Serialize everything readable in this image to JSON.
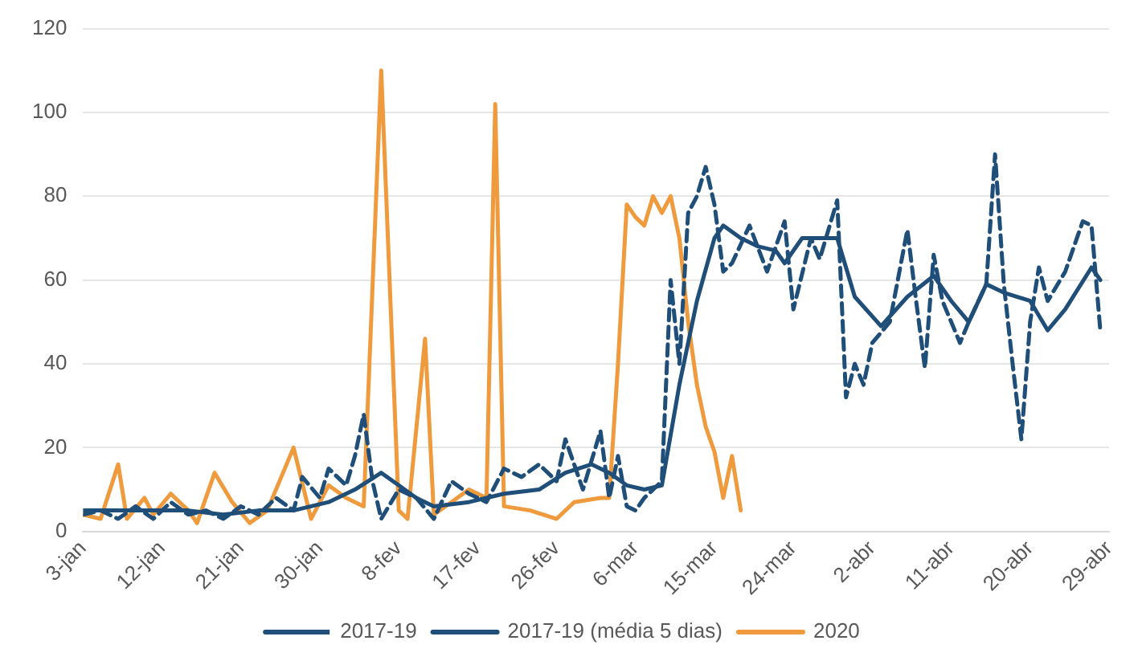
{
  "chart_data": {
    "type": "line",
    "xlim": [
      "--01-03",
      "--04-29"
    ],
    "xticks": [
      {
        "value": "--01-03",
        "label": "3-jan"
      },
      {
        "value": "--01-12",
        "label": "12-jan"
      },
      {
        "value": "--01-21",
        "label": "21-jan"
      },
      {
        "value": "--01-30",
        "label": "30-jan"
      },
      {
        "value": "--02-08",
        "label": "8-fev"
      },
      {
        "value": "--02-17",
        "label": "17-fev"
      },
      {
        "value": "--02-26",
        "label": "26-fev"
      },
      {
        "value": "--03-06",
        "label": "6-mar"
      },
      {
        "value": "--03-15",
        "label": "15-mar"
      },
      {
        "value": "--03-24",
        "label": "24-mar"
      },
      {
        "value": "--04-02",
        "label": "2-abr"
      },
      {
        "value": "--04-11",
        "label": "11-abr"
      },
      {
        "value": "--04-20",
        "label": "20-abr"
      },
      {
        "value": "--04-29",
        "label": "29-abr"
      }
    ],
    "ylim": [
      0,
      120
    ],
    "yticks": [
      0,
      20,
      40,
      60,
      80,
      100,
      120
    ],
    "grid": "y",
    "legend": "bottom",
    "marker": "none",
    "series": [
      {
        "name": "2017-19",
        "color": "#1f4e79",
        "line_style": "dashed",
        "x": [
          "--01-03",
          "--01-05",
          "--01-07",
          "--01-09",
          "--01-11",
          "--01-13",
          "--01-15",
          "--01-17",
          "--01-19",
          "--01-21",
          "--01-23",
          "--01-25",
          "--01-27",
          "--01-28",
          "--01-30",
          "--01-31",
          "--02-02",
          "--02-03",
          "--02-04",
          "--02-05",
          "--02-06",
          "--02-08",
          "--02-10",
          "--02-12",
          "--02-14",
          "--02-16",
          "--02-18",
          "--02-20",
          "--02-22",
          "--02-24",
          "--02-26",
          "--02-27",
          "--02-29",
          "--03-02",
          "--03-03",
          "--03-04",
          "--03-05",
          "--03-06",
          "--03-07",
          "--03-09",
          "--03-10",
          "--03-11",
          "--03-12",
          "--03-13",
          "--03-14",
          "--03-15",
          "--03-16",
          "--03-17",
          "--03-19",
          "--03-21",
          "--03-23",
          "--03-24",
          "--03-26",
          "--03-27",
          "--03-29",
          "--03-30",
          "--03-31",
          "--04-01",
          "--04-02",
          "--04-04",
          "--04-06",
          "--04-07",
          "--04-08",
          "--04-09",
          "--04-10",
          "--04-12",
          "--04-13",
          "--04-15",
          "--04-16",
          "--04-17",
          "--04-18",
          "--04-19",
          "--04-20",
          "--04-21",
          "--04-22",
          "--04-24",
          "--04-26",
          "--04-27",
          "--04-28"
        ],
        "values": [
          4,
          5,
          3,
          6,
          3,
          7,
          4,
          5,
          3,
          6,
          4,
          8,
          5,
          13,
          8,
          15,
          11,
          18,
          28,
          12,
          3,
          10,
          8,
          3,
          12,
          9,
          7,
          15,
          13,
          16,
          12,
          22,
          10,
          24,
          8,
          18,
          6,
          5,
          8,
          12,
          60,
          40,
          76,
          80,
          87,
          78,
          62,
          64,
          73,
          62,
          74,
          53,
          70,
          65,
          79,
          32,
          40,
          35,
          45,
          50,
          72,
          55,
          39,
          66,
          55,
          45,
          50,
          59,
          90,
          59,
          40,
          22,
          50,
          63,
          55,
          62,
          74,
          73,
          48
        ]
      },
      {
        "name": "2017-19 (média 5 dias)",
        "color": "#1f4e79",
        "line_style": "solid",
        "x": [
          "--01-03",
          "--01-07",
          "--01-11",
          "--01-15",
          "--01-19",
          "--01-23",
          "--01-27",
          "--01-31",
          "--02-03",
          "--02-06",
          "--02-08",
          "--02-10",
          "--02-12",
          "--02-16",
          "--02-20",
          "--02-24",
          "--02-27",
          "--03-01",
          "--03-03",
          "--03-05",
          "--03-07",
          "--03-09",
          "--03-11",
          "--03-13",
          "--03-15",
          "--03-16",
          "--03-18",
          "--03-20",
          "--03-22",
          "--03-23",
          "--03-25",
          "--03-29",
          "--03-31",
          "--04-03",
          "--04-06",
          "--04-09",
          "--04-11",
          "--04-13",
          "--04-15",
          "--04-17",
          "--04-20",
          "--04-22",
          "--04-24",
          "--04-27",
          "--04-28"
        ],
        "values": [
          5,
          5,
          5,
          5,
          4,
          5,
          5,
          7,
          10,
          14,
          11,
          8,
          6,
          7,
          9,
          10,
          14,
          16,
          14,
          11,
          10,
          11,
          35,
          55,
          70,
          73,
          70,
          68,
          67,
          64,
          70,
          70,
          56,
          49,
          56,
          61,
          55,
          50,
          59,
          57,
          55,
          48,
          53,
          63,
          60
        ]
      },
      {
        "name": "2020",
        "color": "#f09a3e",
        "line_style": "solid",
        "x": [
          "--01-03",
          "--01-05",
          "--01-07",
          "--01-08",
          "--01-10",
          "--01-11",
          "--01-13",
          "--01-15",
          "--01-16",
          "--01-18",
          "--01-20",
          "--01-22",
          "--01-24",
          "--01-27",
          "--01-29",
          "--01-31",
          "--02-02",
          "--02-04",
          "--02-06",
          "--02-08",
          "--02-09",
          "--02-11",
          "--02-12",
          "--02-14",
          "--02-16",
          "--02-18",
          "--02-19",
          "--02-20",
          "--02-23",
          "--02-26",
          "--02-28",
          "--03-02",
          "--03-03",
          "--03-04",
          "--03-05",
          "--03-06",
          "--03-07",
          "--03-08",
          "--03-09",
          "--03-10",
          "--03-11",
          "--03-12",
          "--03-13",
          "--03-14",
          "--03-15",
          "--03-16",
          "--03-17",
          "--03-18"
        ],
        "values": [
          4,
          3,
          16,
          3,
          8,
          4,
          9,
          5,
          2,
          14,
          7,
          2,
          5,
          20,
          3,
          11,
          8,
          6,
          110,
          5,
          3,
          46,
          4,
          7,
          10,
          8,
          102,
          6,
          5,
          3,
          7,
          8,
          8,
          40,
          78,
          75,
          73,
          80,
          76,
          80,
          70,
          50,
          35,
          25,
          19,
          8,
          18,
          5
        ]
      }
    ]
  }
}
